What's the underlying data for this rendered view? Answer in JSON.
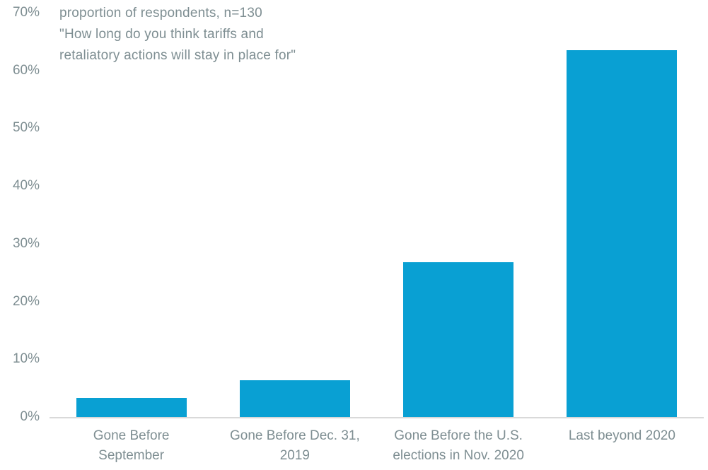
{
  "chart_data": {
    "type": "bar",
    "title_lines": [
      "proportion of respondents, n=130",
      "\"How long do you think tariffs and",
      "retaliatory actions will stay in place for\""
    ],
    "categories": [
      [
        "Gone Before",
        "September"
      ],
      [
        "Gone Before Dec. 31,",
        "2019"
      ],
      [
        "Gone Before the U.S.",
        "elections in Nov. 2020"
      ],
      [
        "Last beyond 2020"
      ]
    ],
    "categories_flat": [
      "Gone Before September",
      "Gone Before Dec. 31, 2019",
      "Gone Before the U.S. elections in Nov. 2020",
      "Last beyond 2020"
    ],
    "values": [
      3.3,
      6.4,
      26.8,
      63.5
    ],
    "unit": "%",
    "xlabel": "",
    "ylabel": "",
    "ylim": [
      0,
      70
    ],
    "ytick_step": 10,
    "ytick_labels": [
      "0%",
      "10%",
      "20%",
      "30%",
      "40%",
      "50%",
      "60%",
      "70%"
    ],
    "grid": false,
    "legend": null,
    "colors": {
      "bar": "#09A0D3",
      "axis_line": "#D9D9D9",
      "text": "#7E8E92"
    }
  }
}
